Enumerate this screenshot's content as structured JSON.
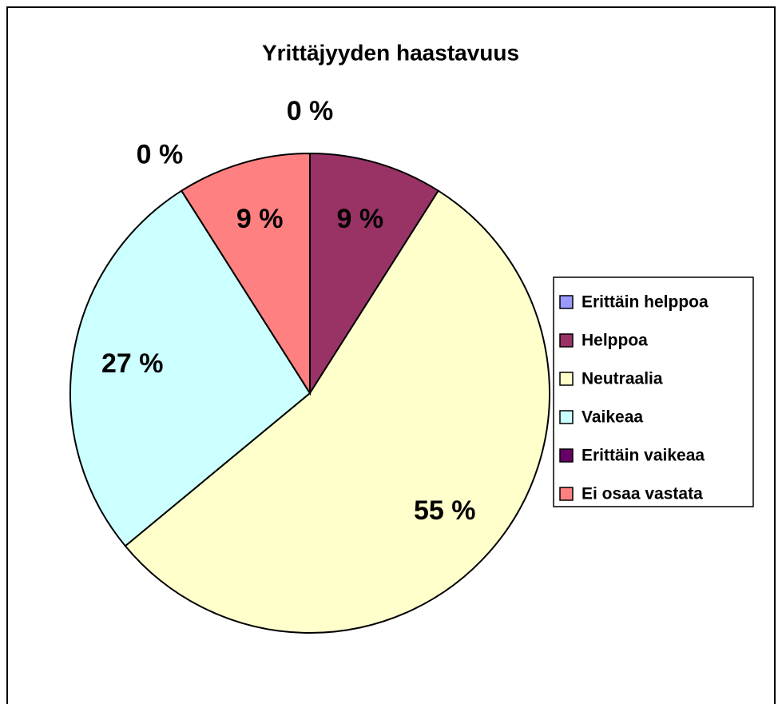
{
  "chart_data": {
    "type": "pie",
    "title": "Yrittäjyyden haastavuus",
    "categories": [
      "Erittäin helppoa",
      "Helppoa",
      "Neutraalia",
      "Vaikeaa",
      "Erittäin vaikeaa",
      "Ei osaa vastata"
    ],
    "values": [
      0,
      9,
      55,
      27,
      0,
      9
    ],
    "value_labels": [
      "0 %",
      "9 %",
      "55 %",
      "27 %",
      "0 %",
      "9 %"
    ],
    "colors": [
      "#9999ff",
      "#993366",
      "#ffffcc",
      "#ccffff",
      "#660066",
      "#ff8080"
    ],
    "legend": "right"
  }
}
